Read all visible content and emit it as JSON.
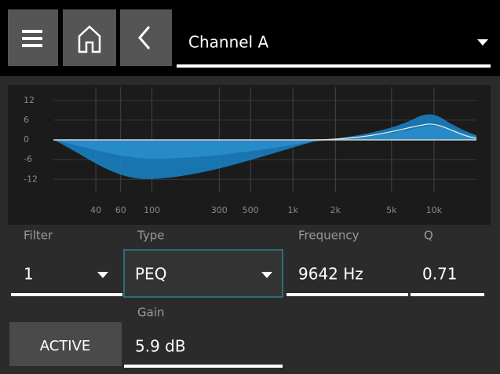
{
  "header": {
    "channel": "Channel A"
  },
  "eq_graph": {
    "xscale": "log",
    "xlim": [
      20,
      20000
    ],
    "ylim": [
      -16,
      16
    ],
    "yticks": [
      12,
      6,
      0,
      -6,
      -12
    ],
    "xticks": [
      40,
      60,
      100,
      300,
      500,
      {
        "value": 1000,
        "label": "1k"
      },
      {
        "value": 2000,
        "label": "2k"
      },
      {
        "value": 5000,
        "label": "5k"
      },
      {
        "value": 10000,
        "label": "10k"
      }
    ]
  },
  "fields": {
    "filter": {
      "label": "Filter",
      "value": "1"
    },
    "type": {
      "label": "Type",
      "value": "PEQ"
    },
    "frequency": {
      "label": "Frequency",
      "value": "9642 Hz"
    },
    "q": {
      "label": "Q",
      "value": "0.71"
    },
    "gain": {
      "label": "Gain",
      "value": "5.9 dB"
    }
  },
  "active_button": "ACTIVE"
}
